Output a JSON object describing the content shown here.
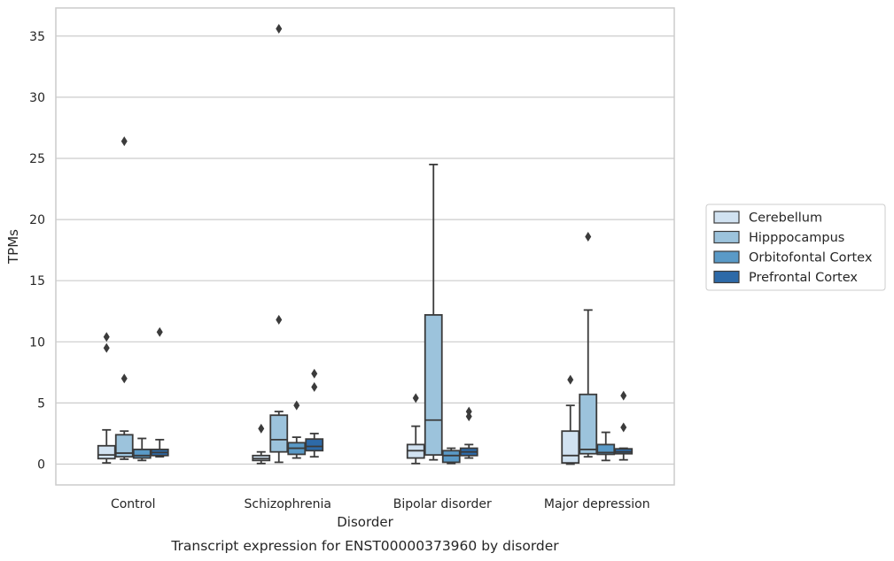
{
  "caption": "Transcript expression for ENST00000373960 by disorder",
  "chart_data": {
    "type": "box",
    "title": "",
    "xlabel": "Disorder",
    "ylabel": "TPMs",
    "ylim": [
      -1.7,
      37.3
    ],
    "yticks": [
      0,
      5,
      10,
      15,
      20,
      25,
      30,
      35
    ],
    "grid": "horizontal",
    "legend_position": "right",
    "categories": [
      "Control",
      "Schizophrenia",
      "Bipolar disorder",
      "Major depression"
    ],
    "series": [
      {
        "name": "Cerebellum",
        "color": "#d1e2f1",
        "boxes": [
          {
            "whislo": 0.1,
            "q1": 0.45,
            "med": 0.75,
            "q3": 1.5,
            "whishi": 2.8,
            "fliers": [
              9.5,
              10.4
            ]
          },
          {
            "whislo": 0.05,
            "q1": 0.3,
            "med": 0.45,
            "q3": 0.7,
            "whishi": 1.0,
            "fliers": [
              2.9
            ]
          },
          {
            "whislo": 0.05,
            "q1": 0.5,
            "med": 1.1,
            "q3": 1.6,
            "whishi": 3.1,
            "fliers": [
              5.4
            ]
          },
          {
            "whislo": 0.0,
            "q1": 0.1,
            "med": 0.7,
            "q3": 2.7,
            "whishi": 4.8,
            "fliers": [
              6.9
            ]
          }
        ]
      },
      {
        "name": "Hipppocampus",
        "color": "#9cc3dc",
        "boxes": [
          {
            "whislo": 0.4,
            "q1": 0.6,
            "med": 0.9,
            "q3": 2.4,
            "whishi": 2.7,
            "fliers": [
              7.0,
              26.4
            ]
          },
          {
            "whislo": 0.15,
            "q1": 1.0,
            "med": 2.0,
            "q3": 4.0,
            "whishi": 4.3,
            "fliers": [
              11.8,
              35.6
            ]
          },
          {
            "whislo": 0.35,
            "q1": 0.75,
            "med": 3.6,
            "q3": 12.2,
            "whishi": 24.5,
            "fliers": []
          },
          {
            "whislo": 0.6,
            "q1": 0.85,
            "med": 1.2,
            "q3": 5.7,
            "whishi": 12.6,
            "fliers": [
              18.6
            ]
          }
        ]
      },
      {
        "name": "Orbitofontal Cortex",
        "color": "#5a9ac7",
        "boxes": [
          {
            "whislo": 0.3,
            "q1": 0.5,
            "med": 0.7,
            "q3": 1.2,
            "whishi": 2.1,
            "fliers": []
          },
          {
            "whislo": 0.5,
            "q1": 0.8,
            "med": 1.3,
            "q3": 1.75,
            "whishi": 2.2,
            "fliers": [
              4.8
            ]
          },
          {
            "whislo": 0.05,
            "q1": 0.15,
            "med": 0.7,
            "q3": 1.1,
            "whishi": 1.3,
            "fliers": []
          },
          {
            "whislo": 0.3,
            "q1": 0.8,
            "med": 0.95,
            "q3": 1.6,
            "whishi": 2.6,
            "fliers": []
          }
        ]
      },
      {
        "name": "Prefrontal Cortex",
        "color": "#2d6aa8",
        "boxes": [
          {
            "whislo": 0.6,
            "q1": 0.7,
            "med": 0.95,
            "q3": 1.2,
            "whishi": 2.0,
            "fliers": [
              10.8
            ]
          },
          {
            "whislo": 0.6,
            "q1": 1.1,
            "med": 1.45,
            "q3": 2.05,
            "whishi": 2.5,
            "fliers": [
              6.3,
              7.4
            ]
          },
          {
            "whislo": 0.5,
            "q1": 0.7,
            "med": 1.0,
            "q3": 1.3,
            "whishi": 1.6,
            "fliers": [
              3.9,
              4.3
            ]
          },
          {
            "whislo": 0.35,
            "q1": 0.85,
            "med": 1.0,
            "q3": 1.25,
            "whishi": 1.3,
            "fliers": [
              3.0,
              5.6
            ]
          }
        ]
      }
    ]
  }
}
